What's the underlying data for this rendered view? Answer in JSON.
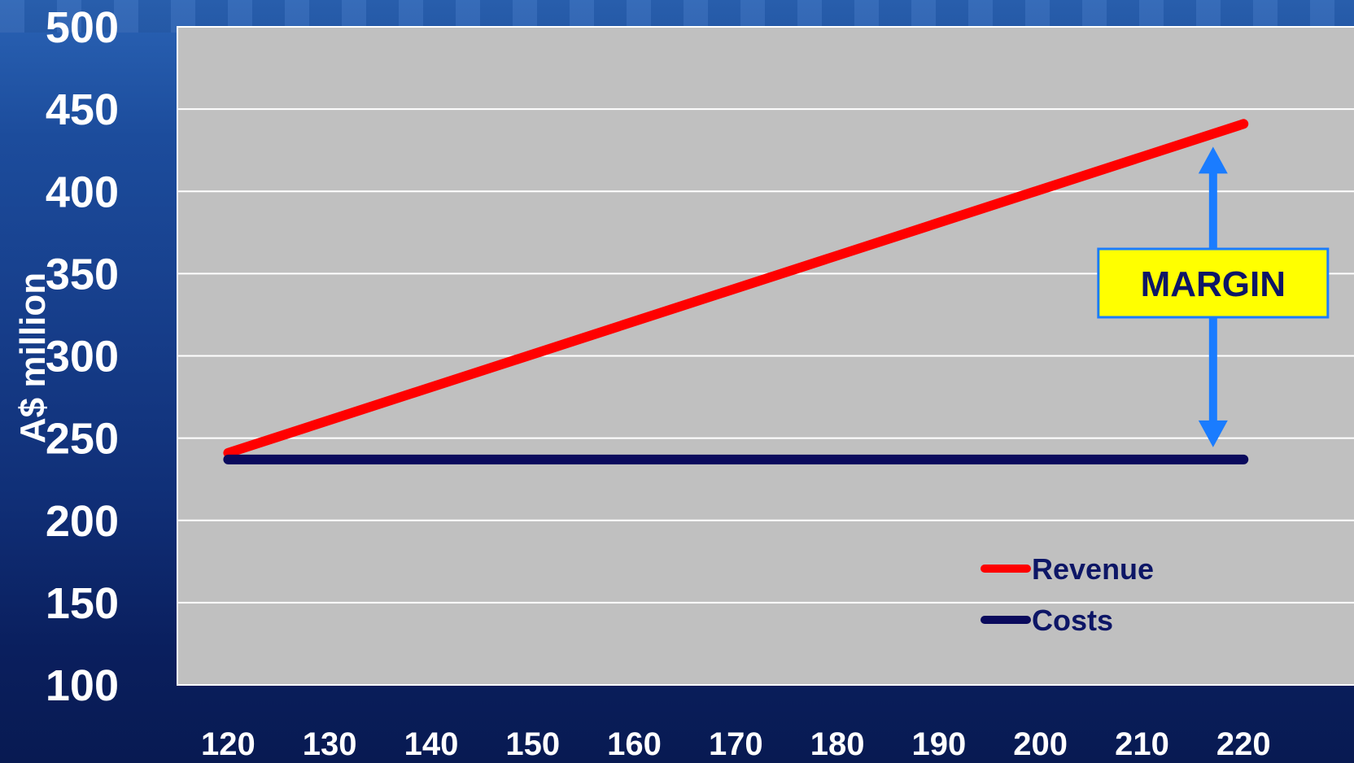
{
  "chart_data": {
    "type": "line",
    "x": [
      120,
      130,
      140,
      150,
      160,
      170,
      180,
      190,
      200,
      210,
      220
    ],
    "x_tick_labels": [
      "120",
      "130",
      "140",
      "150",
      "160",
      "170",
      "180",
      "190",
      "200",
      "210",
      "220"
    ],
    "y_tick_labels": [
      "500",
      "450",
      "400",
      "350",
      "300",
      "250",
      "200",
      "150",
      "100"
    ],
    "ylim": [
      100,
      500
    ],
    "xlim": [
      115,
      232
    ],
    "ylabel": "A$ million",
    "xlabel": "",
    "title": "",
    "grid": true,
    "legend_position": "lower-right",
    "series": [
      {
        "name": "Revenue",
        "color": "#ff0000",
        "x": [
          120,
          220
        ],
        "values": [
          241,
          441
        ]
      },
      {
        "name": "Costs",
        "color": "#0a0a5c",
        "x": [
          120,
          220
        ],
        "values": [
          237,
          237
        ]
      }
    ],
    "annotation": {
      "text": "MARGIN",
      "x": 217,
      "y_from": 237,
      "y_to": 441,
      "arrow_color": "#1a7cff",
      "box_color": "#ffff00"
    }
  }
}
